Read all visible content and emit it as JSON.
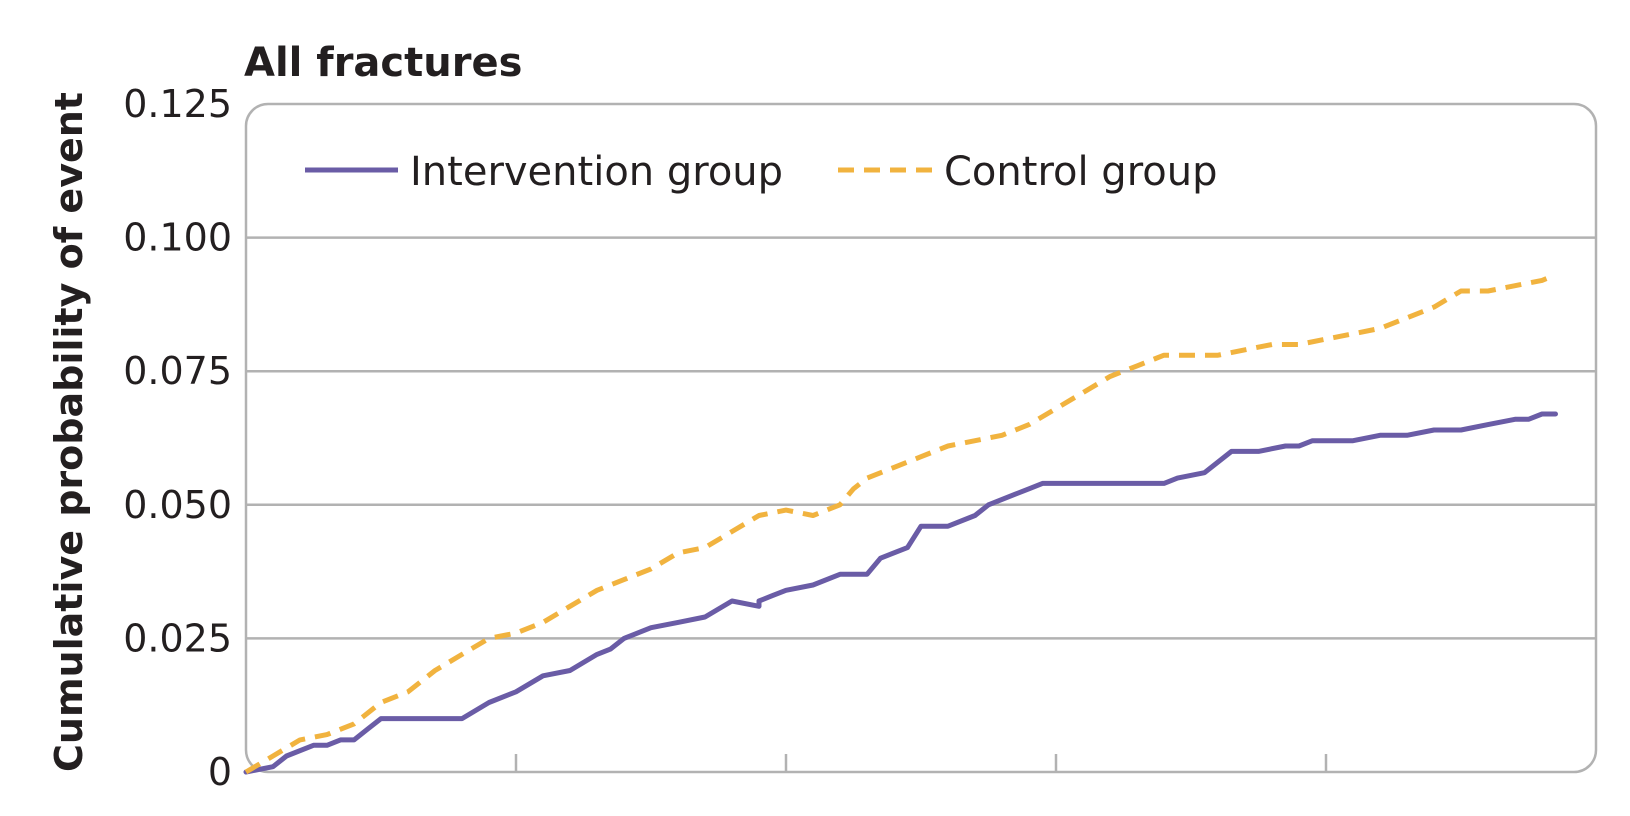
{
  "chart_data": {
    "type": "line",
    "title": "All fractures",
    "xlabel": "",
    "ylabel": "Cumulative probability of event",
    "xlim": [
      0,
      1
    ],
    "ylim": [
      0,
      0.125
    ],
    "yticks": [
      0,
      0.025,
      0.05,
      0.075,
      0.1,
      0.125
    ],
    "ytick_labels": [
      "0",
      "0.025",
      "0.050",
      "0.075",
      "0.100",
      "0.125"
    ],
    "xticks": [
      0.2,
      0.4,
      0.6,
      0.8
    ],
    "grid": true,
    "legend_position": "top-left",
    "series": [
      {
        "name": "Intervention group",
        "color": "#6a5ca6",
        "style": "solid",
        "x": [
          0,
          0.02,
          0.03,
          0.05,
          0.06,
          0.07,
          0.08,
          0.09,
          0.1,
          0.11,
          0.12,
          0.14,
          0.16,
          0.18,
          0.2,
          0.22,
          0.24,
          0.26,
          0.27,
          0.28,
          0.3,
          0.32,
          0.34,
          0.36,
          0.38,
          0.38,
          0.39,
          0.4,
          0.42,
          0.44,
          0.46,
          0.47,
          0.49,
          0.5,
          0.51,
          0.52,
          0.54,
          0.55,
          0.57,
          0.58,
          0.59,
          0.6,
          0.62,
          0.64,
          0.66,
          0.68,
          0.69,
          0.71,
          0.73,
          0.75,
          0.77,
          0.78,
          0.79,
          0.8,
          0.82,
          0.84,
          0.86,
          0.88,
          0.9,
          0.92,
          0.94,
          0.95,
          0.96,
          0.97
        ],
        "values": [
          0,
          0.001,
          0.003,
          0.005,
          0.005,
          0.006,
          0.006,
          0.008,
          0.01,
          0.01,
          0.01,
          0.01,
          0.01,
          0.013,
          0.015,
          0.018,
          0.019,
          0.022,
          0.023,
          0.025,
          0.027,
          0.028,
          0.029,
          0.032,
          0.031,
          0.032,
          0.033,
          0.034,
          0.035,
          0.037,
          0.037,
          0.04,
          0.042,
          0.046,
          0.046,
          0.046,
          0.048,
          0.05,
          0.052,
          0.053,
          0.054,
          0.054,
          0.054,
          0.054,
          0.054,
          0.054,
          0.055,
          0.056,
          0.06,
          0.06,
          0.061,
          0.061,
          0.062,
          0.062,
          0.062,
          0.063,
          0.063,
          0.064,
          0.064,
          0.065,
          0.066,
          0.066,
          0.067,
          0.067
        ]
      },
      {
        "name": "Control group",
        "color": "#f1b33f",
        "style": "dashed",
        "x": [
          0,
          0.02,
          0.04,
          0.06,
          0.08,
          0.1,
          0.12,
          0.14,
          0.16,
          0.18,
          0.2,
          0.22,
          0.24,
          0.26,
          0.28,
          0.3,
          0.32,
          0.34,
          0.36,
          0.38,
          0.4,
          0.42,
          0.44,
          0.45,
          0.46,
          0.48,
          0.5,
          0.52,
          0.54,
          0.56,
          0.58,
          0.6,
          0.62,
          0.64,
          0.66,
          0.68,
          0.7,
          0.72,
          0.74,
          0.76,
          0.78,
          0.8,
          0.82,
          0.84,
          0.86,
          0.88,
          0.9,
          0.92,
          0.94,
          0.96,
          0.97
        ],
        "values": [
          0,
          0.003,
          0.006,
          0.007,
          0.009,
          0.013,
          0.015,
          0.019,
          0.022,
          0.025,
          0.026,
          0.028,
          0.031,
          0.034,
          0.036,
          0.038,
          0.041,
          0.042,
          0.045,
          0.048,
          0.049,
          0.048,
          0.05,
          0.053,
          0.055,
          0.057,
          0.059,
          0.061,
          0.062,
          0.063,
          0.065,
          0.068,
          0.071,
          0.074,
          0.076,
          0.078,
          0.078,
          0.078,
          0.079,
          0.08,
          0.08,
          0.081,
          0.082,
          0.083,
          0.085,
          0.087,
          0.09,
          0.09,
          0.091,
          0.092,
          0.093
        ]
      }
    ]
  }
}
